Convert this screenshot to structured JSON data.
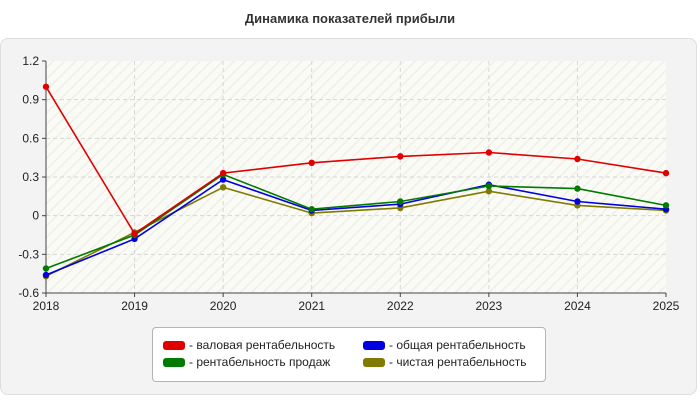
{
  "title": "Динамика показателей прибыли",
  "chart_data": {
    "type": "line",
    "title": "Динамика показателей прибыли",
    "xlabel": "",
    "ylabel": "",
    "x": [
      "2018",
      "2019",
      "2020",
      "2021",
      "2022",
      "2023",
      "2024",
      "2025"
    ],
    "ylim": [
      -0.6,
      1.2
    ],
    "yticks": [
      "1.2",
      "0.9",
      "0.6",
      "0.3",
      "0",
      "-0.3",
      "-0.6"
    ],
    "grid": true,
    "legend_position": "bottom",
    "series": [
      {
        "name": "- валовая рентабельность",
        "color": "#e00000",
        "values": [
          1.0,
          -0.14,
          0.33,
          0.41,
          0.46,
          0.49,
          0.44,
          0.33
        ]
      },
      {
        "name": "- общая рентабельность",
        "color": "#0000e0",
        "values": [
          -0.46,
          -0.18,
          0.28,
          0.04,
          0.09,
          0.24,
          0.11,
          0.05
        ]
      },
      {
        "name": "- рентабельность продаж",
        "color": "#007a00",
        "values": [
          -0.41,
          -0.15,
          0.32,
          0.05,
          0.11,
          0.23,
          0.21,
          0.08
        ]
      },
      {
        "name": "- чистая рентабельность",
        "color": "#7f7a00",
        "values": [
          -0.47,
          -0.13,
          0.22,
          0.02,
          0.06,
          0.19,
          0.08,
          0.04
        ]
      }
    ]
  }
}
